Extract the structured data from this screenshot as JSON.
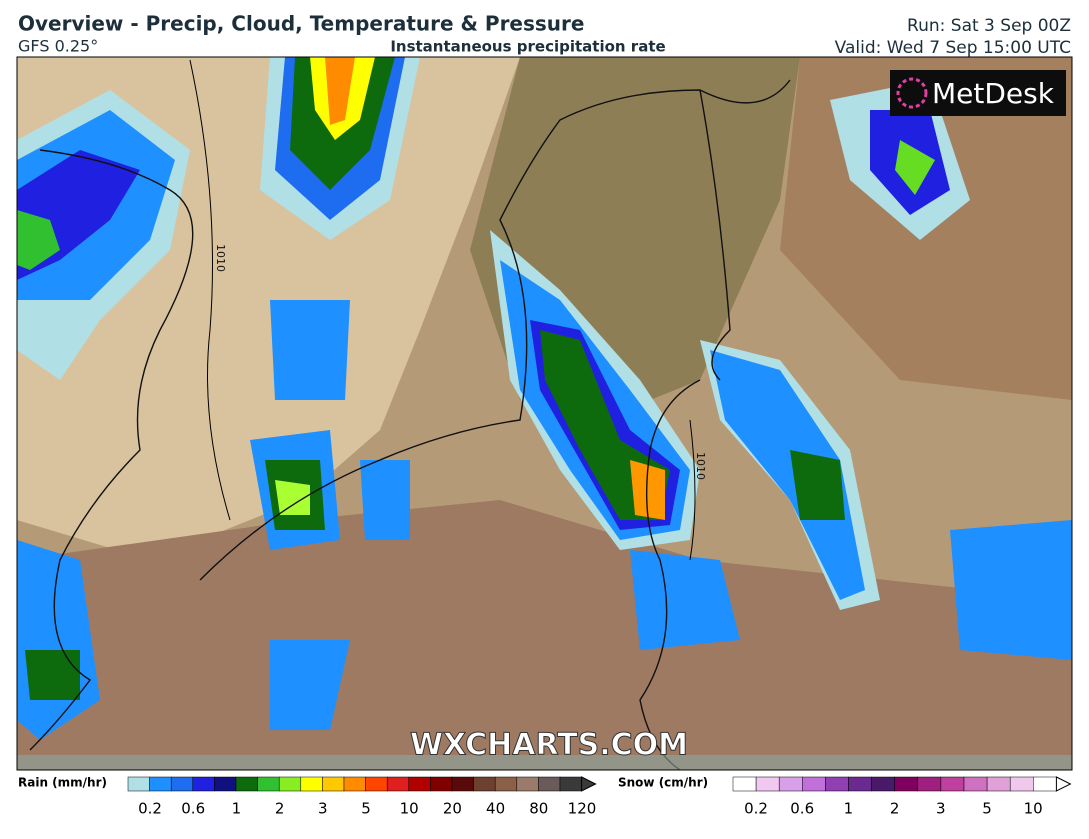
{
  "header": {
    "title": "Overview - Precip, Cloud, Temperature & Pressure",
    "model": "GFS 0.25°",
    "subtitle": "Instantaneous precipitation rate",
    "run": "Run: Sat 3 Sep 00Z",
    "valid": "Valid: Wed 7 Sep 15:00 UTC"
  },
  "map": {
    "isobar_labels": [
      "1010",
      "1010"
    ],
    "logo": "MetDesk",
    "watermark": "WXCHARTS.COM"
  },
  "legend": {
    "rain": {
      "title": "Rain (mm/hr)",
      "labels": [
        "0.2",
        "0.6",
        "1",
        "2",
        "3",
        "5",
        "10",
        "20",
        "40",
        "80",
        "120"
      ]
    },
    "snow": {
      "title": "Snow (cm/hr)",
      "labels": [
        "0.2",
        "0.6",
        "1",
        "2",
        "3",
        "5",
        "10"
      ]
    }
  }
}
